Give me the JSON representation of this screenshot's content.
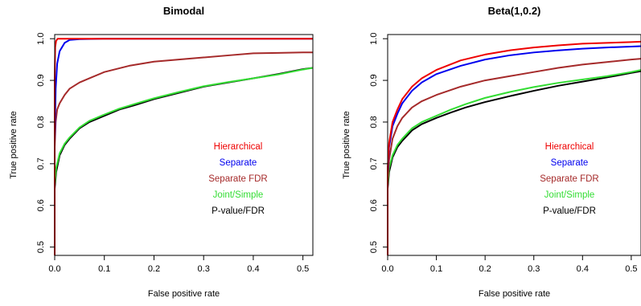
{
  "chart_data": [
    {
      "type": "line",
      "title": "Bimodal",
      "xlabel": "False positive rate",
      "ylabel": "True positive rate",
      "xlim": [
        0,
        0.52
      ],
      "ylim": [
        0.48,
        1.01
      ],
      "xticks": [
        0.0,
        0.1,
        0.2,
        0.3,
        0.4,
        0.5
      ],
      "xtick_labels": [
        "0.0",
        "0.1",
        "0.2",
        "0.3",
        "0.4",
        "0.5"
      ],
      "yticks": [
        0.5,
        0.6,
        0.7,
        0.8,
        0.9,
        1.0
      ],
      "ytick_labels": [
        "0.5",
        "0.6",
        "0.7",
        "0.8",
        "0.9",
        "1.0"
      ],
      "legend_position": "center-right",
      "series": [
        {
          "name": "P-value/FDR",
          "color": "#000000",
          "x": [
            0,
            0,
            0.003,
            0.01,
            0.02,
            0.03,
            0.05,
            0.07,
            0.1,
            0.13,
            0.16,
            0.2,
            0.25,
            0.3,
            0.35,
            0.4,
            0.45,
            0.5,
            0.52
          ],
          "y": [
            0.48,
            0.64,
            0.68,
            0.72,
            0.745,
            0.76,
            0.785,
            0.8,
            0.815,
            0.83,
            0.84,
            0.855,
            0.87,
            0.885,
            0.895,
            0.905,
            0.915,
            0.927,
            0.93
          ]
        },
        {
          "name": "Joint/Simple",
          "color": "#33dd33",
          "x": [
            0,
            0,
            0.003,
            0.01,
            0.02,
            0.03,
            0.05,
            0.07,
            0.1,
            0.13,
            0.16,
            0.2,
            0.25,
            0.3,
            0.35,
            0.4,
            0.45,
            0.5,
            0.52
          ],
          "y": [
            0.48,
            0.65,
            0.69,
            0.725,
            0.748,
            0.763,
            0.787,
            0.803,
            0.818,
            0.832,
            0.843,
            0.857,
            0.872,
            0.886,
            0.896,
            0.905,
            0.914,
            0.926,
            0.93
          ]
        },
        {
          "name": "Separate FDR",
          "color": "#a52a2a",
          "x": [
            0,
            0,
            0.002,
            0.005,
            0.01,
            0.02,
            0.03,
            0.05,
            0.07,
            0.1,
            0.15,
            0.2,
            0.25,
            0.3,
            0.35,
            0.4,
            0.45,
            0.5,
            0.52
          ],
          "y": [
            0.48,
            0.74,
            0.8,
            0.83,
            0.845,
            0.865,
            0.88,
            0.895,
            0.905,
            0.92,
            0.935,
            0.945,
            0.95,
            0.955,
            0.96,
            0.965,
            0.966,
            0.967,
            0.967
          ]
        },
        {
          "name": "Separate",
          "color": "#0000ee",
          "x": [
            0,
            0,
            0.002,
            0.005,
            0.01,
            0.015,
            0.02,
            0.03,
            0.05,
            0.1,
            0.2,
            0.3,
            0.4,
            0.5,
            0.52
          ],
          "y": [
            0.48,
            0.75,
            0.88,
            0.94,
            0.97,
            0.98,
            0.99,
            0.997,
            0.999,
            1.0,
            1.0,
            1.0,
            1.0,
            1.0,
            1.0
          ]
        },
        {
          "name": "Hierarchical",
          "color": "#ee0000",
          "x": [
            0,
            0,
            0.001,
            0.003,
            0.006,
            0.01,
            0.1,
            0.2,
            0.3,
            0.4,
            0.5,
            0.52
          ],
          "y": [
            0.48,
            0.9,
            0.98,
            0.995,
            1.0,
            1.0,
            1.0,
            1.0,
            1.0,
            1.0,
            1.0,
            1.0
          ]
        }
      ]
    },
    {
      "type": "line",
      "title": "Beta(1,0.2)",
      "xlabel": "False positive rate",
      "ylabel": "True positive rate",
      "xlim": [
        0,
        0.52
      ],
      "ylim": [
        0.48,
        1.01
      ],
      "xticks": [
        0.0,
        0.1,
        0.2,
        0.3,
        0.4,
        0.5
      ],
      "xtick_labels": [
        "0.0",
        "0.1",
        "0.2",
        "0.3",
        "0.4",
        "0.5"
      ],
      "yticks": [
        0.5,
        0.6,
        0.7,
        0.8,
        0.9,
        1.0
      ],
      "ytick_labels": [
        "0.5",
        "0.6",
        "0.7",
        "0.8",
        "0.9",
        "1.0"
      ],
      "legend_position": "center-right",
      "series": [
        {
          "name": "P-value/FDR",
          "color": "#000000",
          "x": [
            0,
            0,
            0.003,
            0.01,
            0.02,
            0.03,
            0.05,
            0.07,
            0.1,
            0.13,
            0.16,
            0.2,
            0.25,
            0.3,
            0.35,
            0.4,
            0.45,
            0.5,
            0.52
          ],
          "y": [
            0.48,
            0.64,
            0.68,
            0.715,
            0.74,
            0.755,
            0.78,
            0.795,
            0.81,
            0.823,
            0.835,
            0.848,
            0.862,
            0.875,
            0.887,
            0.897,
            0.907,
            0.918,
            0.922
          ]
        },
        {
          "name": "Joint/Simple",
          "color": "#33dd33",
          "x": [
            0,
            0,
            0.003,
            0.01,
            0.02,
            0.03,
            0.05,
            0.07,
            0.1,
            0.13,
            0.16,
            0.2,
            0.25,
            0.3,
            0.35,
            0.4,
            0.45,
            0.5,
            0.52
          ],
          "y": [
            0.48,
            0.65,
            0.69,
            0.72,
            0.745,
            0.76,
            0.785,
            0.8,
            0.815,
            0.83,
            0.843,
            0.858,
            0.872,
            0.884,
            0.894,
            0.902,
            0.91,
            0.92,
            0.925
          ]
        },
        {
          "name": "Separate FDR",
          "color": "#a52a2a",
          "x": [
            0,
            0,
            0.003,
            0.01,
            0.02,
            0.03,
            0.05,
            0.07,
            0.1,
            0.15,
            0.2,
            0.25,
            0.3,
            0.35,
            0.4,
            0.45,
            0.5,
            0.52
          ],
          "y": [
            0.48,
            0.66,
            0.71,
            0.76,
            0.79,
            0.81,
            0.835,
            0.85,
            0.865,
            0.885,
            0.9,
            0.91,
            0.92,
            0.93,
            0.938,
            0.944,
            0.95,
            0.952
          ]
        },
        {
          "name": "Separate",
          "color": "#0000ee",
          "x": [
            0,
            0,
            0.003,
            0.01,
            0.02,
            0.03,
            0.05,
            0.07,
            0.1,
            0.15,
            0.2,
            0.25,
            0.3,
            0.35,
            0.4,
            0.45,
            0.5,
            0.52
          ],
          "y": [
            0.48,
            0.68,
            0.74,
            0.79,
            0.82,
            0.845,
            0.875,
            0.895,
            0.915,
            0.935,
            0.95,
            0.96,
            0.967,
            0.972,
            0.976,
            0.979,
            0.981,
            0.982
          ]
        },
        {
          "name": "Hierarchical",
          "color": "#ee0000",
          "x": [
            0,
            0,
            0.003,
            0.01,
            0.02,
            0.03,
            0.05,
            0.07,
            0.1,
            0.15,
            0.2,
            0.25,
            0.3,
            0.35,
            0.4,
            0.45,
            0.5,
            0.52
          ],
          "y": [
            0.48,
            0.69,
            0.75,
            0.8,
            0.83,
            0.855,
            0.885,
            0.905,
            0.925,
            0.948,
            0.962,
            0.972,
            0.979,
            0.984,
            0.988,
            0.99,
            0.992,
            0.993
          ]
        }
      ]
    }
  ],
  "legend": {
    "items": [
      {
        "label": "Hierarchical",
        "color": "#ee0000"
      },
      {
        "label": "Separate",
        "color": "#0000ee"
      },
      {
        "label": "Separate FDR",
        "color": "#a52a2a"
      },
      {
        "label": "Joint/Simple",
        "color": "#33dd33"
      },
      {
        "label": "P-value/FDR",
        "color": "#000000"
      }
    ]
  }
}
